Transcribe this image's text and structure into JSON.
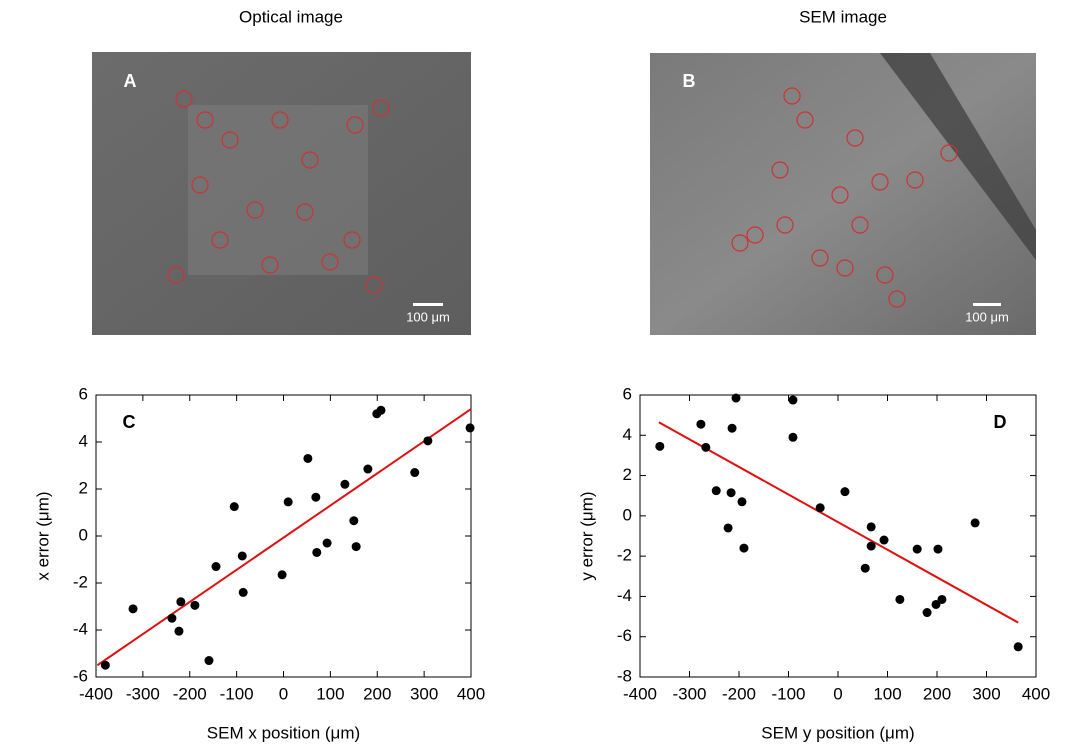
{
  "images": [
    {
      "title": "Optical image",
      "label": "A",
      "scale_bar": "100 μm"
    },
    {
      "title": "SEM image",
      "label": "B",
      "scale_bar": "100 μm"
    }
  ],
  "chart_data": [
    {
      "type": "scatter",
      "label": "C",
      "xlabel": "SEM x position (μm)",
      "ylabel": "x error (μm)",
      "x": [
        -380,
        -321,
        -238,
        -219,
        -223,
        -189,
        -159,
        -144,
        -105,
        -88,
        -86,
        -3,
        10,
        52,
        69,
        71,
        93,
        131,
        150,
        155,
        180,
        199,
        208,
        280,
        308,
        398
      ],
      "values": [
        -5.5,
        -3.1,
        -3.5,
        -2.8,
        -4.05,
        -2.95,
        -5.3,
        -1.3,
        1.25,
        -0.85,
        -2.4,
        -1.65,
        1.45,
        3.3,
        1.65,
        -0.7,
        -0.3,
        2.2,
        0.65,
        -0.45,
        2.85,
        5.2,
        5.35,
        2.7,
        4.05,
        4.6
      ],
      "color": "#000000",
      "fit": {
        "x": [
          -397,
          400
        ],
        "values": [
          -5.5,
          5.4
        ],
        "color": "#e01010"
      },
      "xlim": [
        -400,
        400
      ],
      "ylim": [
        -6,
        6
      ],
      "xticks": [
        -400,
        -300,
        -200,
        -100,
        0,
        100,
        200,
        300,
        400
      ],
      "yticks": [
        -6,
        -4,
        -2,
        0,
        2,
        4,
        6
      ]
    },
    {
      "type": "scatter",
      "label": "D",
      "xlabel": "SEM y position (μm)",
      "ylabel": "y error (μm)",
      "x": [
        -360,
        -277,
        -267,
        -246,
        -214,
        -206,
        -222,
        -216,
        -194,
        -190,
        -91,
        -91,
        -36,
        14,
        55,
        67,
        67,
        93,
        125,
        160,
        180,
        198,
        202,
        210,
        277,
        364
      ],
      "values": [
        3.45,
        4.55,
        3.4,
        1.25,
        4.35,
        5.85,
        -0.6,
        1.15,
        0.7,
        -1.6,
        5.75,
        3.9,
        0.4,
        1.2,
        -2.6,
        -0.55,
        -1.5,
        -1.2,
        -4.15,
        -1.65,
        -4.8,
        -4.4,
        -1.65,
        -4.15,
        -0.35,
        -6.5
      ],
      "color": "#000000",
      "fit": {
        "x": [
          -362,
          364
        ],
        "values": [
          4.65,
          -5.3
        ],
        "color": "#e01010"
      },
      "xlim": [
        -400,
        400
      ],
      "ylim": [
        -8,
        6
      ],
      "xticks": [
        -400,
        -300,
        -200,
        -100,
        0,
        100,
        200,
        300,
        400
      ],
      "yticks": [
        -8,
        -6,
        -4,
        -2,
        0,
        2,
        4,
        6
      ]
    }
  ]
}
